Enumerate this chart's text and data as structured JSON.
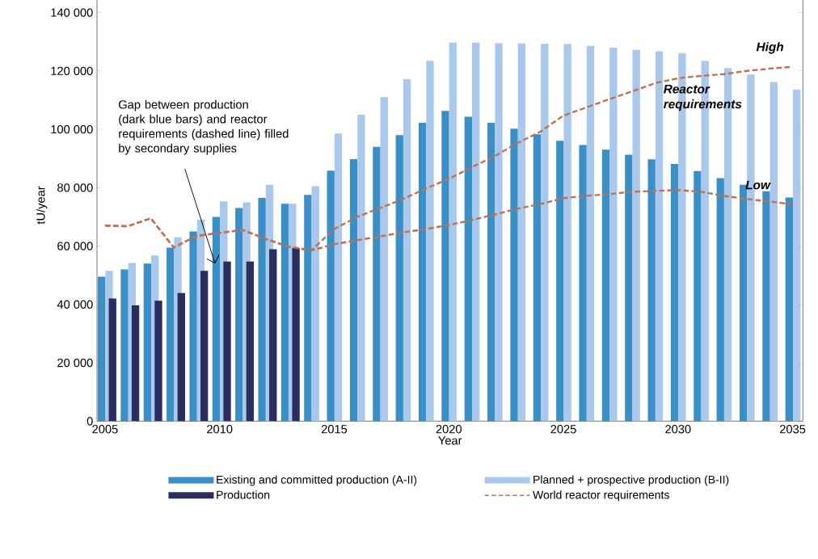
{
  "chart_data": {
    "type": "bar",
    "xlabel": "Year",
    "ylabel": "tU/year",
    "x": [
      2005,
      2006,
      2007,
      2008,
      2009,
      2010,
      2011,
      2012,
      2013,
      2014,
      2015,
      2016,
      2017,
      2018,
      2019,
      2020,
      2021,
      2022,
      2023,
      2024,
      2025,
      2026,
      2027,
      2028,
      2029,
      2030,
      2031,
      2032,
      2033,
      2034,
      2035
    ],
    "xlim": [
      2004.65,
      2035.45
    ],
    "xticks": [
      2005,
      2010,
      2015,
      2020,
      2025,
      2030,
      2035
    ],
    "ylim": [
      0,
      148000
    ],
    "yticks": [
      {
        "value": 0,
        "label": "0"
      },
      {
        "value": 20000,
        "label": "20 000"
      },
      {
        "value": 40000,
        "label": "40 000"
      },
      {
        "value": 60000,
        "label": "60 000"
      },
      {
        "value": 80000,
        "label": "80 000"
      },
      {
        "value": 100000,
        "label": "100 000"
      },
      {
        "value": 120000,
        "label": "120 000"
      },
      {
        "value": 140000,
        "label": "140 000"
      }
    ],
    "legend": "bottom",
    "series": [
      {
        "name": "Existing and committed production (A-II)",
        "color": "#3a8fc7",
        "values": [
          49500,
          52000,
          54000,
          59500,
          65000,
          70000,
          73000,
          76500,
          74500,
          77500,
          85800,
          89800,
          94000,
          98000,
          102200,
          106300,
          104300,
          102200,
          100200,
          98300,
          96100,
          94600,
          93000,
          91300,
          89700,
          88100,
          85700,
          83300,
          81000,
          78800,
          76600
        ]
      },
      {
        "name": "Planned + prospective production (B-II)",
        "color": "#a9c8ec",
        "values": [
          51500,
          54200,
          56800,
          63000,
          69000,
          75300,
          75000,
          81000,
          74500,
          80500,
          98600,
          105000,
          111000,
          117200,
          123500,
          129700,
          129700,
          129500,
          129400,
          129300,
          129200,
          128600,
          128000,
          127200,
          126700,
          126100,
          123500,
          121000,
          118800,
          116200,
          113600
        ]
      },
      {
        "name": "Production",
        "color": "#2b2d5e",
        "x": [
          2005,
          2006,
          2007,
          2008,
          2009,
          2010,
          2011,
          2012,
          2013
        ],
        "values": [
          42000,
          39700,
          41300,
          43900,
          51500,
          54700,
          54700,
          58900,
          59300
        ]
      },
      {
        "name": "World reactor requirements",
        "type": "line",
        "line_style": "dashed",
        "color": "#c0714f",
        "values": [
          67000,
          66800,
          69500,
          59500,
          63500,
          64500,
          65500,
          62500,
          59800,
          58500,
          65800,
          70000,
          73000,
          76100,
          79700,
          83000,
          87000,
          90800,
          95300,
          99200,
          104700,
          107500,
          110300,
          113000,
          115800,
          117500,
          118300,
          118900,
          120000,
          120800,
          121400
        ]
      },
      {
        "type": "line",
        "line_style": "dashed",
        "color": "#c0714f",
        "values": [
          67000,
          66800,
          69500,
          59500,
          63500,
          64500,
          65500,
          62500,
          59800,
          58500,
          60600,
          62000,
          63300,
          64700,
          65800,
          67200,
          68900,
          70800,
          72800,
          74400,
          76400,
          77200,
          77800,
          78600,
          78900,
          79200,
          78600,
          77200,
          76100,
          75300,
          74200
        ]
      }
    ],
    "annotations": [
      {
        "text": "Gap between production (dark blue bars) and reactor requirements (dashed line) filled by secondary supplies",
        "x": 2009.8,
        "y": 54000
      },
      {
        "text": "*High*",
        "x": 2035,
        "y": 121400
      },
      {
        "text": "*Reactor requirements*",
        "x": 2031,
        "y": 118300
      },
      {
        "text": "*Low*",
        "x": 2035,
        "y": 74200
      }
    ]
  }
}
